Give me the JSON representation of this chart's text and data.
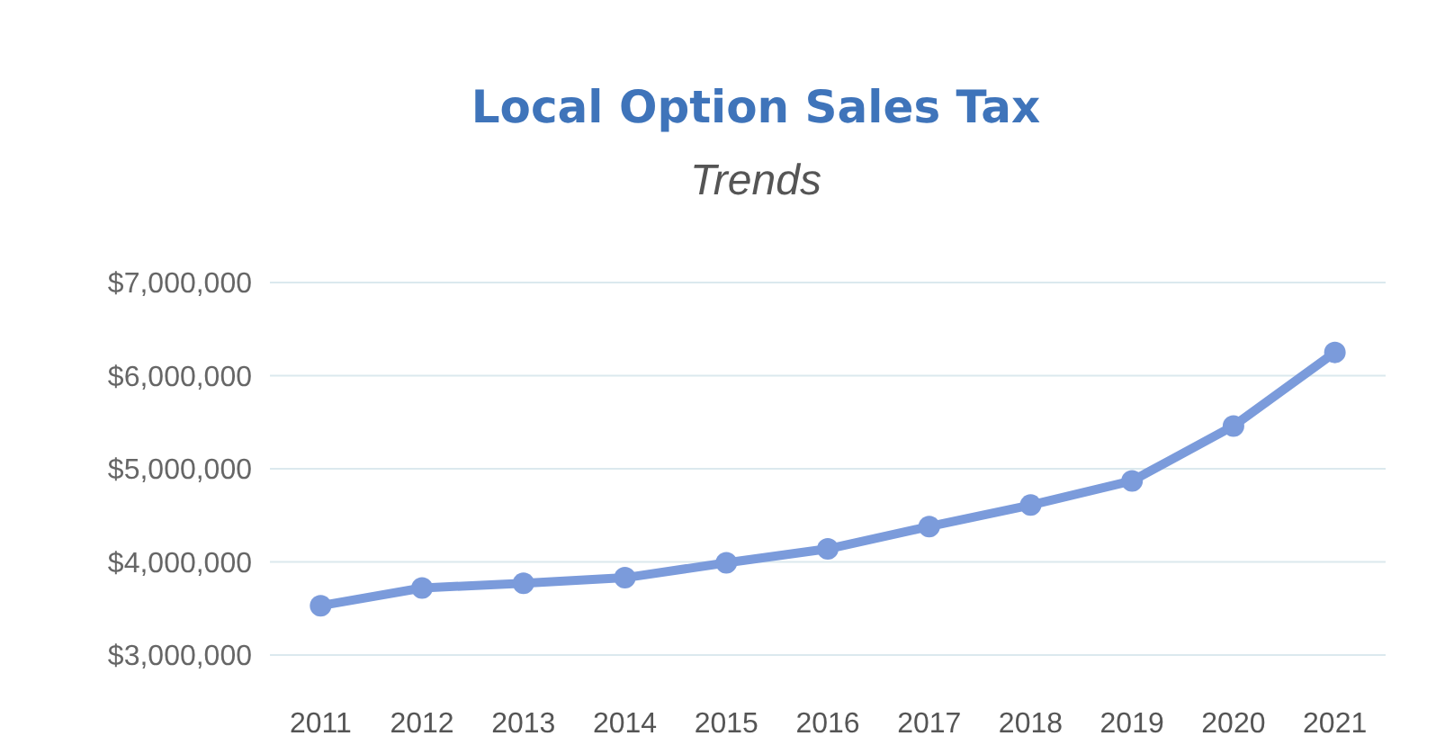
{
  "chart_data": {
    "type": "line",
    "title": "Local Option Sales Tax",
    "subtitle": "Trends",
    "categories": [
      "2011",
      "2012",
      "2013",
      "2014",
      "2015",
      "2016",
      "2017",
      "2018",
      "2019",
      "2020",
      "2021"
    ],
    "series": [
      {
        "color": "#7b9bdb",
        "values": [
          3530000,
          3720000,
          3770000,
          3830000,
          3990000,
          4140000,
          4380000,
          4610000,
          4870000,
          5460000,
          6250000
        ]
      }
    ],
    "ylim": [
      3000000,
      7000000
    ],
    "yticks": [
      {
        "value": 3000000,
        "label": "$3,000,000"
      },
      {
        "value": 4000000,
        "label": "$4,000,000"
      },
      {
        "value": 5000000,
        "label": "$5,000,000"
      },
      {
        "value": 6000000,
        "label": "$6,000,000"
      },
      {
        "value": 7000000,
        "label": "$7,000,000"
      }
    ],
    "grid": "y",
    "marker": "circle",
    "line_style": "solid"
  }
}
